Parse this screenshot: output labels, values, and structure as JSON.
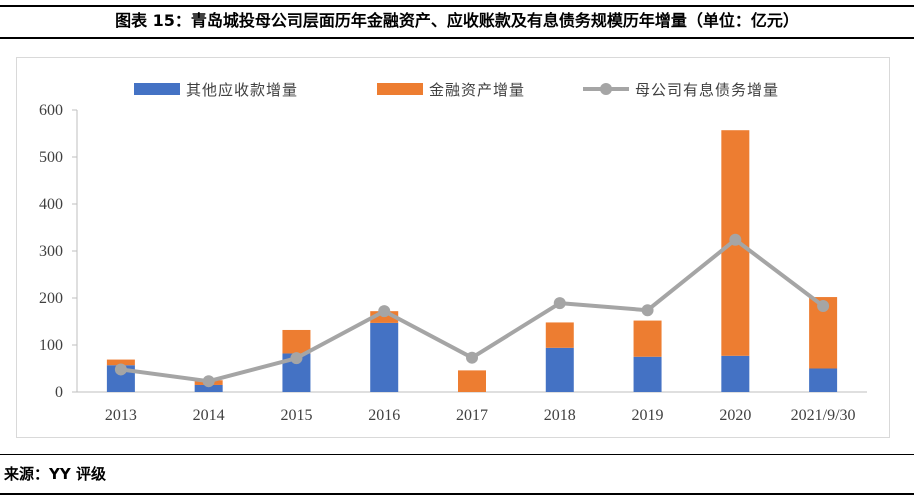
{
  "header": {
    "title": "图表 15：青岛城投母公司层面历年金融资产、应收账款及有息债务规模历年增量（单位：亿元）"
  },
  "footer": {
    "source": "来源：YY 评级"
  },
  "chart_data": {
    "type": "bar",
    "stacked": true,
    "title": "",
    "xlabel": "",
    "ylabel": "",
    "ylim": [
      0,
      600
    ],
    "yticks": [
      0,
      100,
      200,
      300,
      400,
      500,
      600
    ],
    "grid": false,
    "legend_position": "top",
    "categories": [
      "2013",
      "2014",
      "2015",
      "2016",
      "2017",
      "2018",
      "2019",
      "2020",
      "2021/9/30"
    ],
    "series": [
      {
        "name": "其他应收款增量",
        "kind": "bar",
        "color": "#4472c4",
        "values": [
          57,
          15,
          82,
          147,
          0,
          94,
          75,
          77,
          50
        ]
      },
      {
        "name": "金融资产增量",
        "kind": "bar",
        "color": "#ed7d31",
        "values": [
          12,
          10,
          50,
          25,
          46,
          54,
          77,
          480,
          152
        ]
      },
      {
        "name": "母公司有息债务增量",
        "kind": "line",
        "color": "#a5a5a5",
        "values": [
          48,
          23,
          72,
          172,
          73,
          189,
          174,
          324,
          183
        ]
      }
    ]
  }
}
